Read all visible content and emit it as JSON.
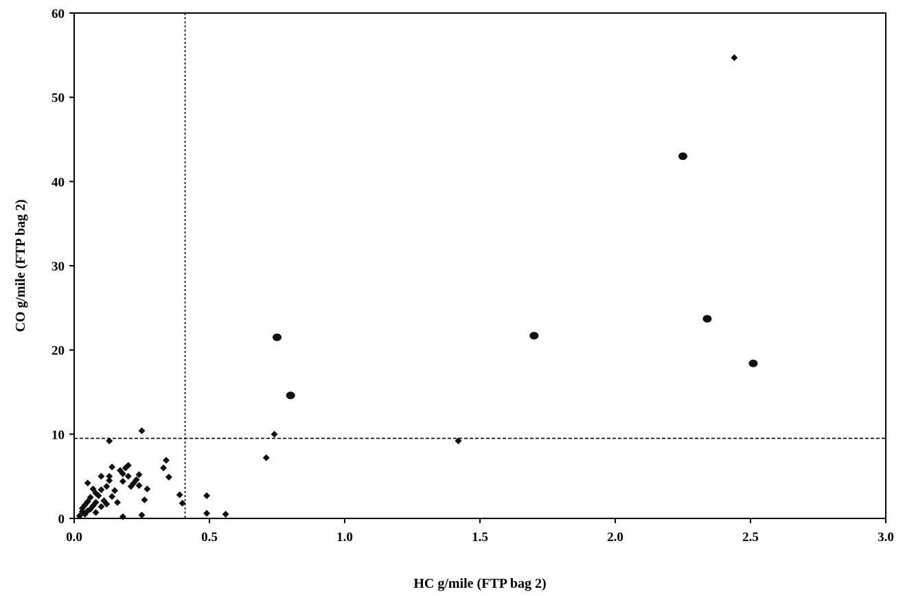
{
  "chart_data": {
    "type": "scatter",
    "xlabel": "HC g/mile (FTP bag 2)",
    "ylabel": "CO g/mile (FTP bag 2)",
    "xlim": [
      0,
      3.0
    ],
    "ylim": [
      0,
      60
    ],
    "x_ticks": [
      "0.0",
      "0.5",
      "1.0",
      "1.5",
      "2.0",
      "2.5",
      "3.0"
    ],
    "y_ticks": [
      "0",
      "10",
      "20",
      "30",
      "40",
      "50",
      "60"
    ],
    "grid": false,
    "legend": "none",
    "reference_lines": [
      {
        "orientation": "vertical",
        "x": 0.41
      },
      {
        "orientation": "horizontal",
        "y": 9.5
      }
    ],
    "series": [
      {
        "marker": "diamond",
        "points": [
          [
            0.02,
            0.3
          ],
          [
            0.03,
            0.8
          ],
          [
            0.03,
            1.2
          ],
          [
            0.04,
            0.5
          ],
          [
            0.04,
            1.6
          ],
          [
            0.05,
            0.9
          ],
          [
            0.05,
            2.0
          ],
          [
            0.05,
            4.2
          ],
          [
            0.06,
            1.1
          ],
          [
            0.06,
            2.5
          ],
          [
            0.07,
            1.5
          ],
          [
            0.07,
            3.5
          ],
          [
            0.08,
            0.7
          ],
          [
            0.08,
            1.9
          ],
          [
            0.08,
            3.0
          ],
          [
            0.09,
            2.7
          ],
          [
            0.1,
            1.4
          ],
          [
            0.1,
            3.4
          ],
          [
            0.1,
            5.0
          ],
          [
            0.11,
            2.1
          ],
          [
            0.12,
            1.7
          ],
          [
            0.12,
            3.8
          ],
          [
            0.13,
            4.5
          ],
          [
            0.13,
            5.0
          ],
          [
            0.13,
            9.2
          ],
          [
            0.14,
            6.1
          ],
          [
            0.14,
            2.6
          ],
          [
            0.15,
            3.3
          ],
          [
            0.16,
            1.9
          ],
          [
            0.17,
            5.7
          ],
          [
            0.18,
            4.4
          ],
          [
            0.18,
            5.3
          ],
          [
            0.18,
            0.2
          ],
          [
            0.19,
            6.0
          ],
          [
            0.2,
            6.3
          ],
          [
            0.2,
            5.0
          ],
          [
            0.21,
            3.8
          ],
          [
            0.22,
            4.2
          ],
          [
            0.23,
            4.6
          ],
          [
            0.24,
            5.2
          ],
          [
            0.24,
            3.9
          ],
          [
            0.25,
            10.4
          ],
          [
            0.25,
            0.4
          ],
          [
            0.26,
            2.2
          ],
          [
            0.27,
            3.5
          ],
          [
            0.33,
            6.0
          ],
          [
            0.34,
            6.9
          ],
          [
            0.35,
            4.9
          ],
          [
            0.39,
            2.8
          ],
          [
            0.4,
            1.8
          ],
          [
            0.49,
            2.7
          ],
          [
            0.49,
            0.6
          ],
          [
            0.56,
            0.5
          ],
          [
            0.71,
            7.2
          ],
          [
            0.74,
            10.0
          ],
          [
            1.42,
            9.2
          ],
          [
            2.44,
            54.7
          ]
        ]
      },
      {
        "marker": "circle",
        "points": [
          [
            0.75,
            21.5
          ],
          [
            0.8,
            14.6
          ],
          [
            1.7,
            21.7
          ],
          [
            2.25,
            43.0
          ],
          [
            2.34,
            23.7
          ],
          [
            2.51,
            18.4
          ]
        ]
      }
    ]
  }
}
